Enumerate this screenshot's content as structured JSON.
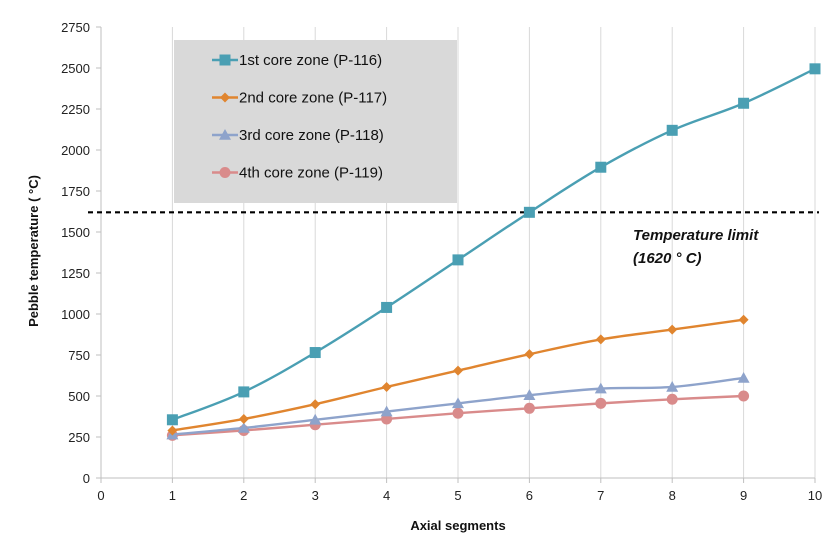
{
  "chart_data": {
    "type": "line",
    "xlabel": "Axial segments",
    "ylabel": "Pebble temperature ( °C)",
    "xlim": [
      0,
      10
    ],
    "ylim": [
      0,
      2750
    ],
    "x_ticks": [
      "0",
      "1",
      "2",
      "3",
      "4",
      "5",
      "6",
      "7",
      "8",
      "9",
      "10"
    ],
    "y_ticks": [
      "0",
      "250",
      "500",
      "750",
      "1000",
      "1250",
      "1500",
      "1750",
      "2000",
      "2250",
      "2500",
      "2750"
    ],
    "grid": "vertical",
    "legend_position": "top-left",
    "series": [
      {
        "name": "1st core zone (P-116)",
        "color": "#4a9fb3",
        "marker": "square",
        "x": [
          1,
          2,
          3,
          4,
          5,
          6,
          7,
          8,
          9,
          10
        ],
        "values": [
          355,
          525,
          765,
          1040,
          1330,
          1620,
          1895,
          2120,
          2285,
          2495
        ]
      },
      {
        "name": "2nd core zone (P-117)",
        "color": "#e0852f",
        "marker": "diamond",
        "x": [
          1,
          2,
          3,
          4,
          5,
          6,
          7,
          8,
          9
        ],
        "values": [
          290,
          360,
          450,
          555,
          655,
          755,
          845,
          905,
          965
        ]
      },
      {
        "name": "3rd core zone (P-118)",
        "color": "#8ea3cb",
        "marker": "triangle",
        "x": [
          1,
          2,
          3,
          4,
          5,
          6,
          7,
          8,
          9
        ],
        "values": [
          265,
          305,
          355,
          405,
          455,
          505,
          545,
          555,
          610
        ]
      },
      {
        "name": "4th core zone (P-119)",
        "color": "#d98b8b",
        "marker": "circle",
        "x": [
          1,
          2,
          3,
          4,
          5,
          6,
          7,
          8,
          9
        ],
        "values": [
          260,
          290,
          325,
          360,
          395,
          425,
          455,
          480,
          500
        ]
      }
    ],
    "reference_line": {
      "y": 1620,
      "style": "dashed",
      "color": "#000000",
      "label_line1": "Temperature limit",
      "label_line2": "(1620 ° C)"
    }
  }
}
